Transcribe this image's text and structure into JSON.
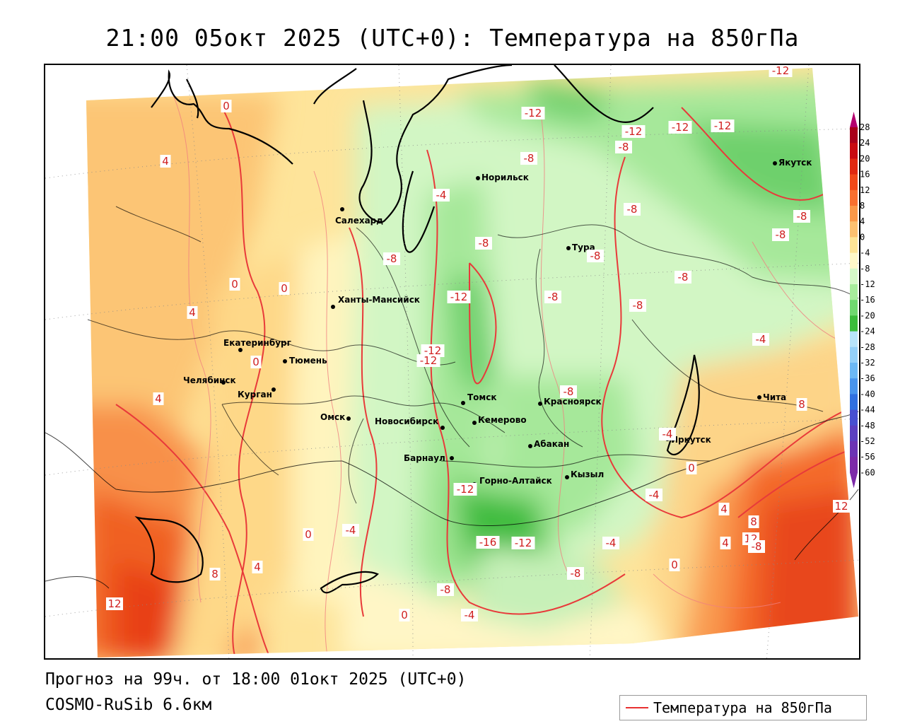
{
  "title": "21:00 05окт 2025 (UTC+0): Температура на 850гПа",
  "footer": {
    "forecast": "Прогноз на 99ч. от 18:00 01окт 2025 (UTC+0)",
    "model": "COSMO-RuSib 6.6км"
  },
  "legend": {
    "label": "Температура на 850гПа",
    "line_color": "#e83030"
  },
  "colorbar": {
    "ticks": [
      "28",
      "24",
      "20",
      "16",
      "12",
      "8",
      "4",
      "0",
      "-4",
      "-8",
      "-12",
      "-16",
      "-20",
      "-24",
      "-28",
      "-32",
      "-36",
      "-40",
      "-44",
      "-48",
      "-52",
      "-56",
      "-60"
    ],
    "colors": [
      "#a8001a",
      "#c80a10",
      "#e02810",
      "#f04818",
      "#f87030",
      "#fa9848",
      "#fcc070",
      "#fee496",
      "#fff8c8",
      "#d6f8c8",
      "#a8ec9c",
      "#70d870",
      "#3cbc3c",
      "#b8e4fa",
      "#94d0f8",
      "#6cb8f4",
      "#4894ec",
      "#3070e0",
      "#4850d0",
      "#5c40c0",
      "#6c34b4",
      "#7c2aa8"
    ]
  },
  "cities": [
    {
      "name": "Норильск"
    },
    {
      "name": "Якутск"
    },
    {
      "name": "Салехард"
    },
    {
      "name": "Тура"
    },
    {
      "name": "Ханты-Мансийск"
    },
    {
      "name": "Екатеринбург"
    },
    {
      "name": "Тюмень"
    },
    {
      "name": "Челябинск"
    },
    {
      "name": "Курган"
    },
    {
      "name": "Омск"
    },
    {
      "name": "Новосибирск"
    },
    {
      "name": "Томск"
    },
    {
      "name": "Кемерово"
    },
    {
      "name": "Красноярск"
    },
    {
      "name": "Абакан"
    },
    {
      "name": "Барнаул"
    },
    {
      "name": "Горно-Алтайск"
    },
    {
      "name": "Кызыл"
    },
    {
      "name": "Иркутск"
    },
    {
      "name": "Чита"
    }
  ],
  "isotherm_labels": [
    "-12",
    "-12",
    "-12",
    "-12",
    "-8",
    "-8",
    "-8",
    "-8",
    "-8",
    "-12",
    "-8",
    "-8",
    "-8",
    "-8",
    "-8",
    "-12",
    "-12",
    "-8",
    "-12",
    "-16",
    "-12",
    "-8",
    "-8",
    "-4",
    "-4",
    "-4",
    "-4",
    "-4",
    "-4",
    "0",
    "0",
    "0",
    "0",
    "0",
    "0",
    "0",
    "0",
    "4",
    "4",
    "4",
    "4",
    "4",
    "4",
    "8",
    "8",
    "8",
    "12",
    "12",
    "12",
    "-8",
    "-12",
    "-4",
    "-8"
  ]
}
